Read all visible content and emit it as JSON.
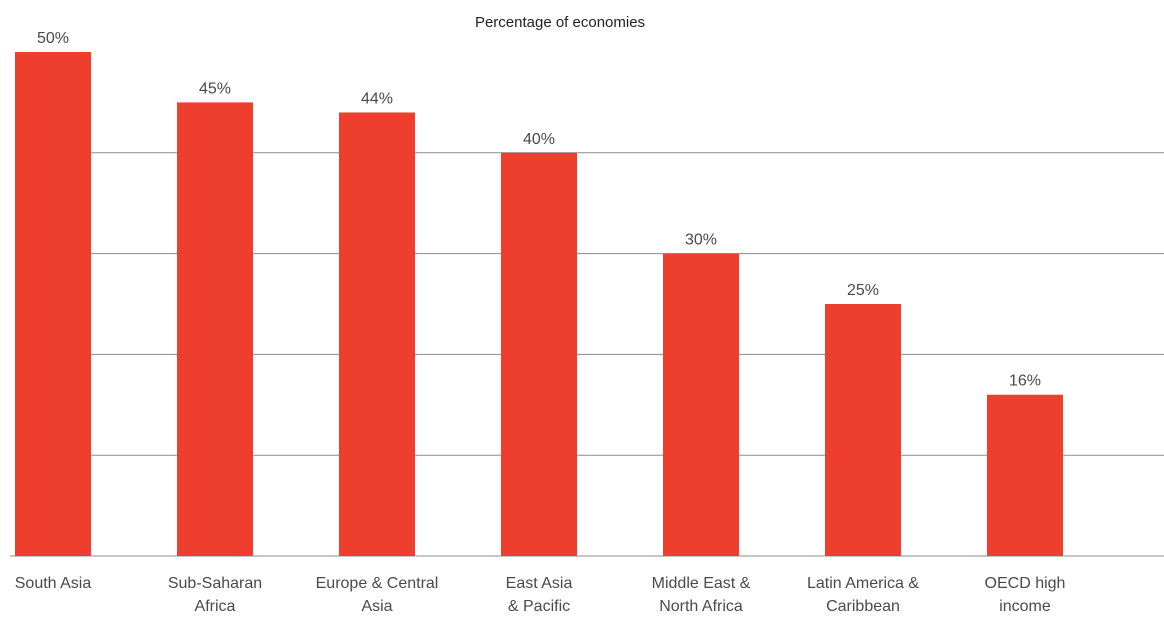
{
  "chart_data": {
    "type": "bar",
    "title": "Percentage of economies",
    "categories": [
      [
        "South Asia"
      ],
      [
        "Sub-Saharan",
        "Africa"
      ],
      [
        "Europe & Central",
        "Asia"
      ],
      [
        "East Asia",
        "& Pacific"
      ],
      [
        "Middle East &",
        "North Africa"
      ],
      [
        "Latin America &",
        "Caribbean"
      ],
      [
        "OECD high",
        "income"
      ]
    ],
    "values": [
      50,
      45,
      44,
      40,
      30,
      25,
      16
    ],
    "value_labels": [
      "50%",
      "45%",
      "44%",
      "40%",
      "30%",
      "25%",
      "16%"
    ],
    "ylim": [
      0,
      50
    ],
    "grid": true,
    "legend": "none",
    "bar_color": "#ee3e2d",
    "grid_color": "#8c8c8c"
  }
}
